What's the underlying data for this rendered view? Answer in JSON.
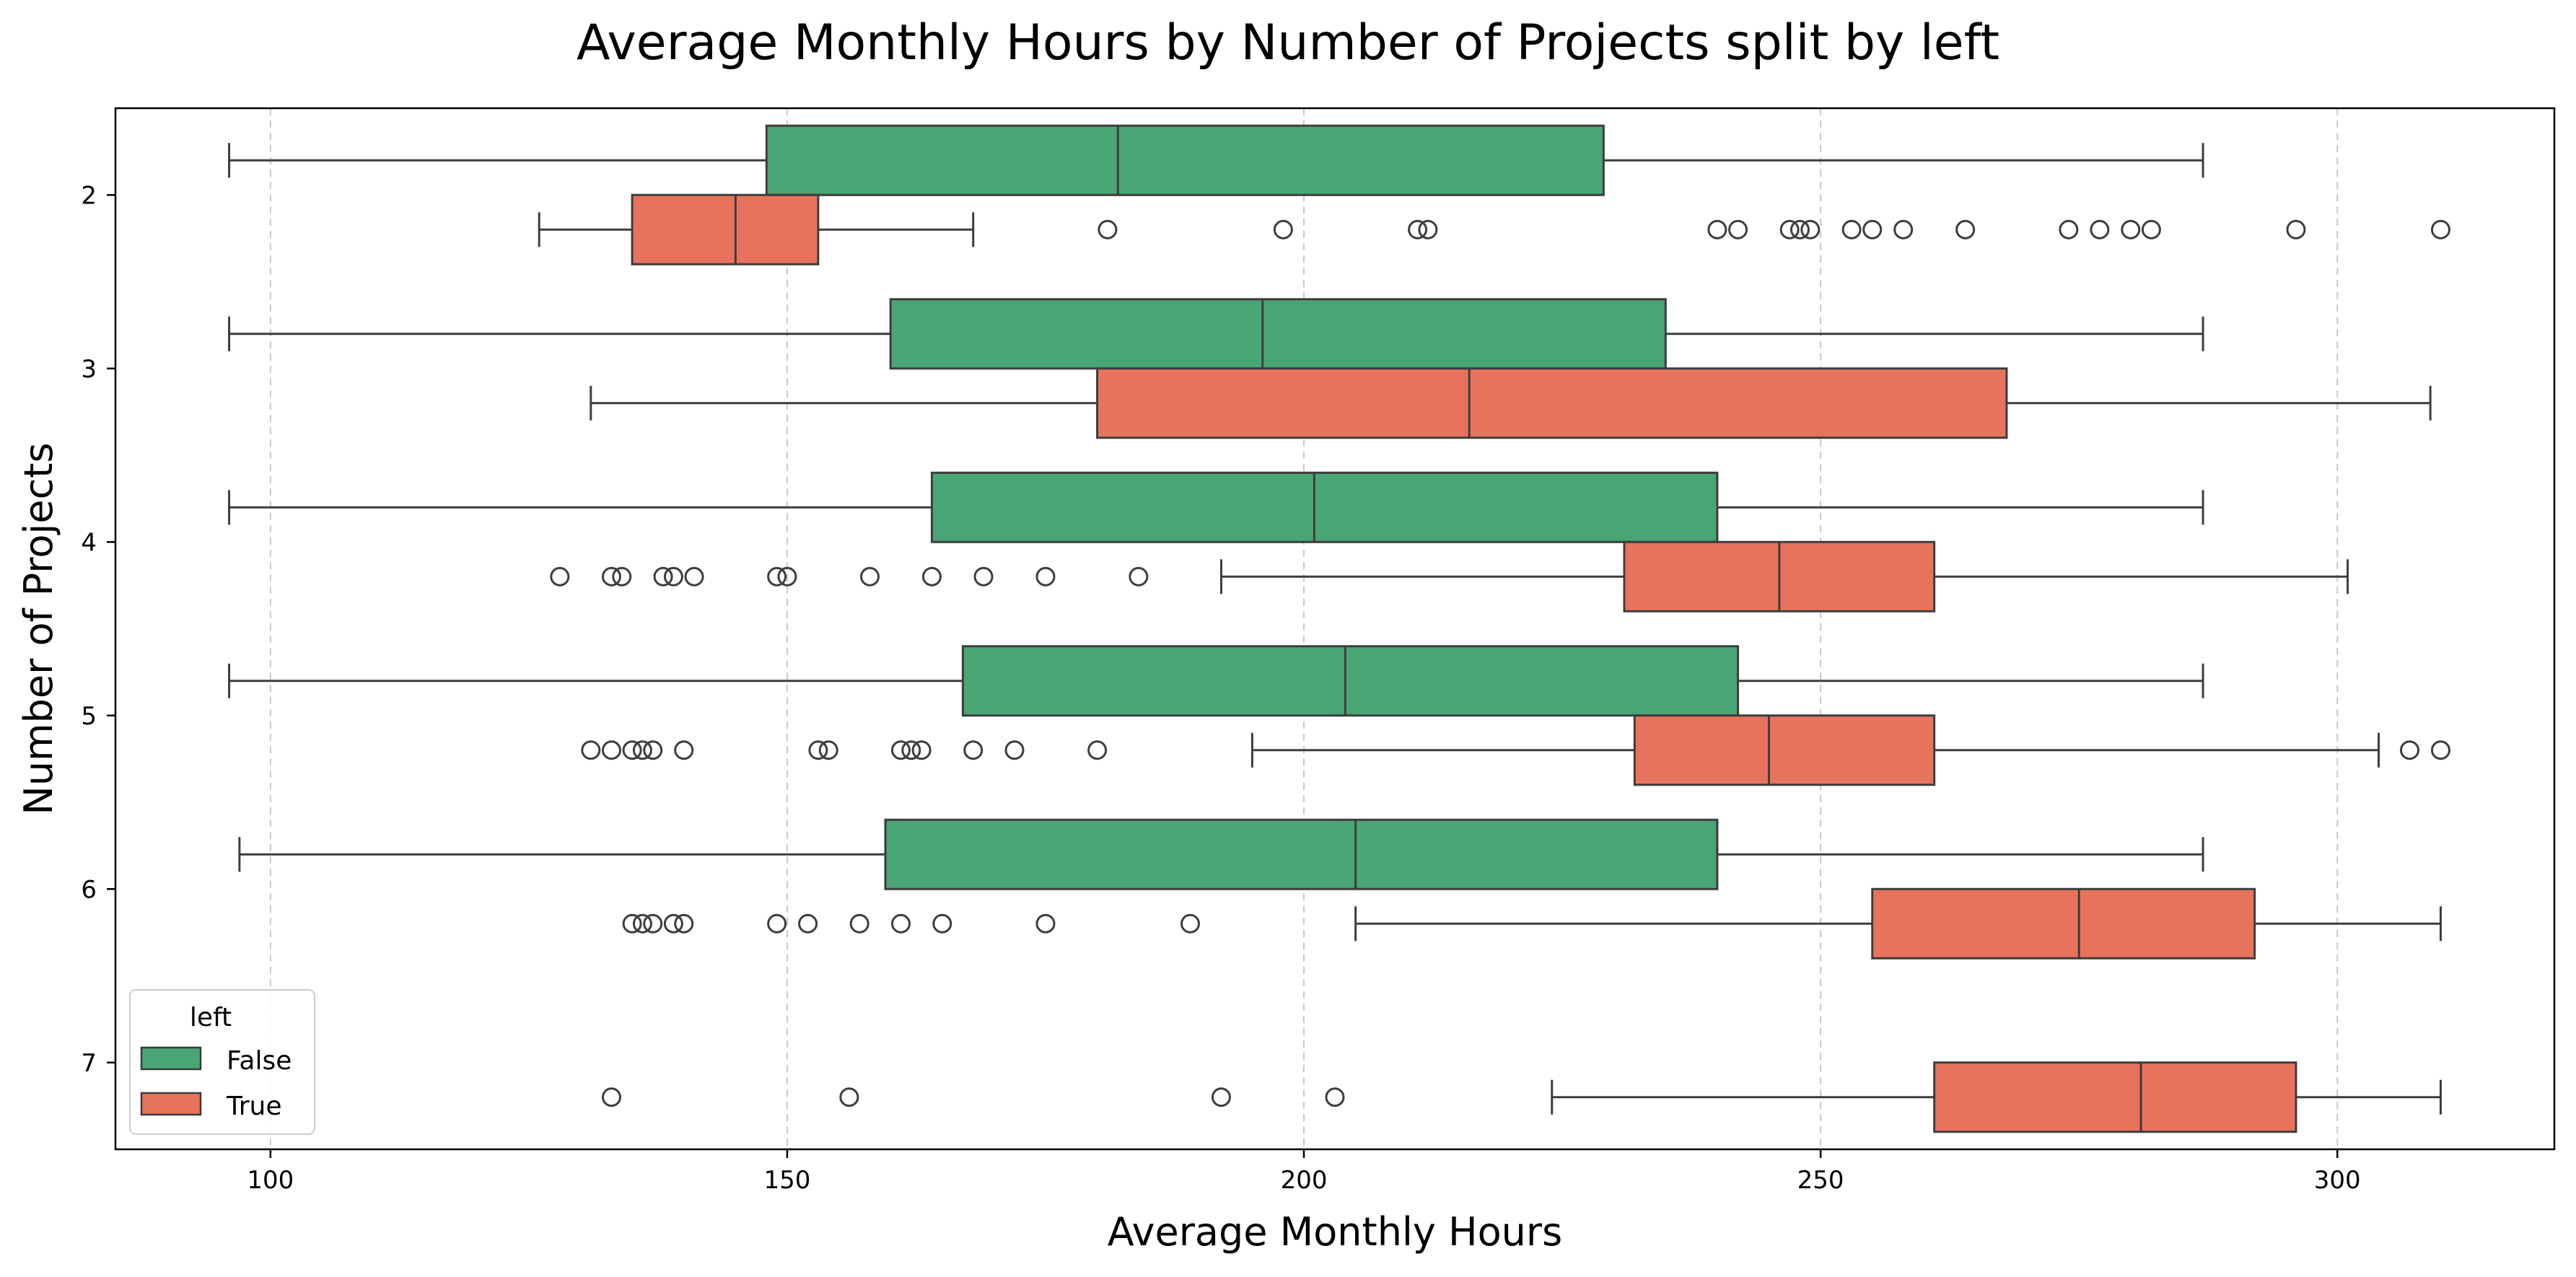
{
  "chart_data": {
    "type": "boxplot",
    "orientation": "horizontal",
    "title": "Average Monthly Hours by Number of Projects split by left",
    "xlabel": "Average Monthly Hours",
    "ylabel": "Number of Projects",
    "xlim": [
      85,
      321
    ],
    "xticks": [
      100,
      150,
      200,
      250,
      300
    ],
    "grid": "x-dashed",
    "categories": [
      "2",
      "3",
      "4",
      "5",
      "6",
      "7"
    ],
    "legend": {
      "title": "left",
      "placement": "lower-left",
      "entries": [
        {
          "label": "False",
          "color": "#4aa574"
        },
        {
          "label": "True",
          "color": "#e8735d"
        }
      ]
    },
    "series": [
      {
        "name": "False",
        "color": "#4aa574",
        "boxes": [
          {
            "category": "2",
            "whisker_low": 96,
            "q1": 148,
            "median": 182,
            "q3": 229,
            "whisker_high": 287,
            "outliers": []
          },
          {
            "category": "3",
            "whisker_low": 96,
            "q1": 160,
            "median": 196,
            "q3": 235,
            "whisker_high": 287,
            "outliers": []
          },
          {
            "category": "4",
            "whisker_low": 96,
            "q1": 164,
            "median": 201,
            "q3": 240,
            "whisker_high": 287,
            "outliers": []
          },
          {
            "category": "5",
            "whisker_low": 96,
            "q1": 167,
            "median": 204,
            "q3": 242,
            "whisker_high": 287,
            "outliers": []
          },
          {
            "category": "6",
            "whisker_low": 97,
            "q1": 159.5,
            "median": 205,
            "q3": 240,
            "whisker_high": 287,
            "outliers": []
          }
        ]
      },
      {
        "name": "True",
        "color": "#e8735d",
        "boxes": [
          {
            "category": "2",
            "whisker_low": 126,
            "q1": 135,
            "median": 145,
            "q3": 153,
            "whisker_high": 168,
            "outliers": [
              181,
              198,
              211,
              212,
              240,
              242,
              247,
              248,
              249,
              253,
              255,
              258,
              264,
              274,
              277,
              280,
              282,
              296,
              310
            ]
          },
          {
            "category": "3",
            "whisker_low": 131,
            "q1": 180,
            "median": 216,
            "q3": 268,
            "whisker_high": 309,
            "outliers": []
          },
          {
            "category": "4",
            "whisker_low": 192,
            "q1": 231,
            "median": 246,
            "q3": 261,
            "whisker_high": 301,
            "outliers": [
              128,
              133,
              134,
              138,
              139,
              141,
              149,
              150,
              158,
              164,
              169,
              175,
              184
            ]
          },
          {
            "category": "5",
            "whisker_low": 195,
            "q1": 232,
            "median": 245,
            "q3": 261,
            "whisker_high": 304,
            "outliers": [
              131,
              133,
              135,
              136,
              137,
              140,
              153,
              154,
              161,
              162,
              163,
              168,
              172,
              180,
              307,
              310
            ]
          },
          {
            "category": "6",
            "whisker_low": 205,
            "q1": 255,
            "median": 275,
            "q3": 292,
            "whisker_high": 310,
            "outliers": [
              135,
              136,
              137,
              139,
              140,
              149,
              152,
              157,
              161,
              165,
              175,
              189
            ]
          },
          {
            "category": "7",
            "whisker_low": 224,
            "q1": 261,
            "median": 281,
            "q3": 296,
            "whisker_high": 310,
            "outliers": [
              133,
              156,
              192,
              203
            ]
          }
        ]
      }
    ]
  }
}
